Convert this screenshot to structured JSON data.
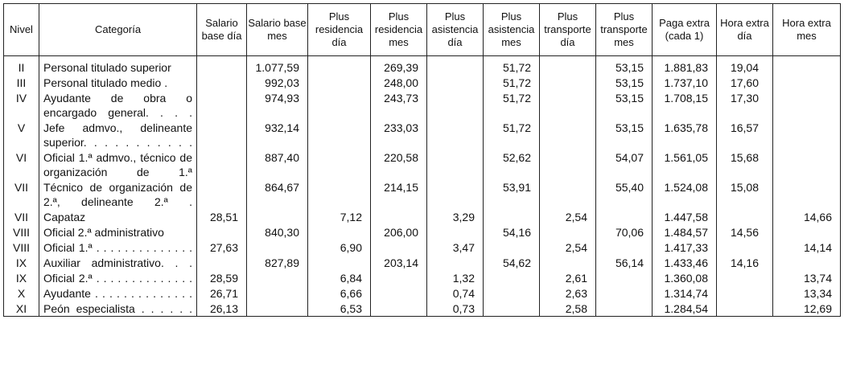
{
  "headers": [
    "Nivel",
    "Categoría",
    "Salario base día",
    "Salario base mes",
    "Plus residencia día",
    "Plus residencia mes",
    "Plus asistencia día",
    "Plus asistencia mes",
    "Plus transporte día",
    "Plus transporte mes",
    "Paga extra (cada 1)",
    "Hora extra día",
    "Hora extra mes"
  ],
  "rows": [
    {
      "nivel": "II",
      "categoria": "Personal titulado superior",
      "sbd": "",
      "sbm": "1.077,59",
      "prd": "",
      "prm": "269,39",
      "pad": "",
      "pam": "51,72",
      "ptd": "",
      "ptm": "53,15",
      "pe": "1.881,83",
      "hed": "19,04",
      "hem": ""
    },
    {
      "nivel": "III",
      "categoria": "Personal titulado medio .",
      "sbd": "",
      "sbm": "992,03",
      "prd": "",
      "prm": "248,00",
      "pad": "",
      "pam": "51,72",
      "ptd": "",
      "ptm": "53,15",
      "pe": "1.737,10",
      "hed": "17,60",
      "hem": ""
    },
    {
      "nivel": "IV",
      "categoria": "Ayudante de obra o encargado general. . . .",
      "sbd": "",
      "sbm": "974,93",
      "prd": "",
      "prm": "243,73",
      "pad": "",
      "pam": "51,72",
      "ptd": "",
      "ptm": "53,15",
      "pe": "1.708,15",
      "hed": "17,30",
      "hem": ""
    },
    {
      "nivel": "V",
      "categoria": "Jefe admvo., delineante superior. . . . . . . . . . .",
      "sbd": "",
      "sbm": "932,14",
      "prd": "",
      "prm": "233,03",
      "pad": "",
      "pam": "51,72",
      "ptd": "",
      "ptm": "53,15",
      "pe": "1.635,78",
      "hed": "16,57",
      "hem": ""
    },
    {
      "nivel": "VI",
      "categoria": "Oficial 1.ª admvo., técnico de organización de 1.ª",
      "sbd": "",
      "sbm": "887,40",
      "prd": "",
      "prm": "220,58",
      "pad": "",
      "pam": "52,62",
      "ptd": "",
      "ptm": "54,07",
      "pe": "1.561,05",
      "hed": "15,68",
      "hem": ""
    },
    {
      "nivel": "VII",
      "categoria": "Técnico de organización de 2.ª, delineante 2.ª .",
      "sbd": "",
      "sbm": "864,67",
      "prd": "",
      "prm": "214,15",
      "pad": "",
      "pam": "53,91",
      "ptd": "",
      "ptm": "55,40",
      "pe": "1.524,08",
      "hed": "15,08",
      "hem": ""
    },
    {
      "nivel": "VII",
      "categoria": "Capataz",
      "sbd": "28,51",
      "sbm": "",
      "prd": "7,12",
      "prm": "",
      "pad": "3,29",
      "pam": "",
      "ptd": "2,54",
      "ptm": "",
      "pe": "1.447,58",
      "hed": "",
      "hem": "14,66"
    },
    {
      "nivel": "VIII",
      "categoria": "Oficial 2.ª administrativo",
      "sbd": "",
      "sbm": "840,30",
      "prd": "",
      "prm": "206,00",
      "pad": "",
      "pam": "54,16",
      "ptd": "",
      "ptm": "70,06",
      "pe": "1.484,57",
      "hed": "14,56",
      "hem": ""
    },
    {
      "nivel": "VIII",
      "categoria": "Oficial 1.ª . . . . . . . . . . . . . .",
      "sbd": "27,63",
      "sbm": "",
      "prd": "6,90",
      "prm": "",
      "pad": "3,47",
      "pam": "",
      "ptd": "2,54",
      "ptm": "",
      "pe": "1.417,33",
      "hed": "",
      "hem": "14,14"
    },
    {
      "nivel": "IX",
      "categoria": "Auxiliar administrativo. . .",
      "sbd": "",
      "sbm": "827,89",
      "prd": "",
      "prm": "203,14",
      "pad": "",
      "pam": "54,62",
      "ptd": "",
      "ptm": "56,14",
      "pe": "1.433,46",
      "hed": "14,16",
      "hem": ""
    },
    {
      "nivel": "IX",
      "categoria": "Oficial 2.ª . . . . . . . . . . . . . .",
      "sbd": "28,59",
      "sbm": "",
      "prd": "6,84",
      "prm": "",
      "pad": "1,32",
      "pam": "",
      "ptd": "2,61",
      "ptm": "",
      "pe": "1.360,08",
      "hed": "",
      "hem": "13,74"
    },
    {
      "nivel": "X",
      "categoria": "Ayudante . . . . . . . . . . . . . .",
      "sbd": "26,71",
      "sbm": "",
      "prd": "6,66",
      "prm": "",
      "pad": "0,74",
      "pam": "",
      "ptd": "2,63",
      "ptm": "",
      "pe": "1.314,74",
      "hed": "",
      "hem": "13,34"
    },
    {
      "nivel": "XI",
      "categoria": "Peón especialista . . . . . .",
      "sbd": "26,13",
      "sbm": "",
      "prd": "6,53",
      "prm": "",
      "pad": "0,73",
      "pam": "",
      "ptd": "2,58",
      "ptm": "",
      "pe": "1.284,54",
      "hed": "",
      "hem": "12,69"
    }
  ]
}
